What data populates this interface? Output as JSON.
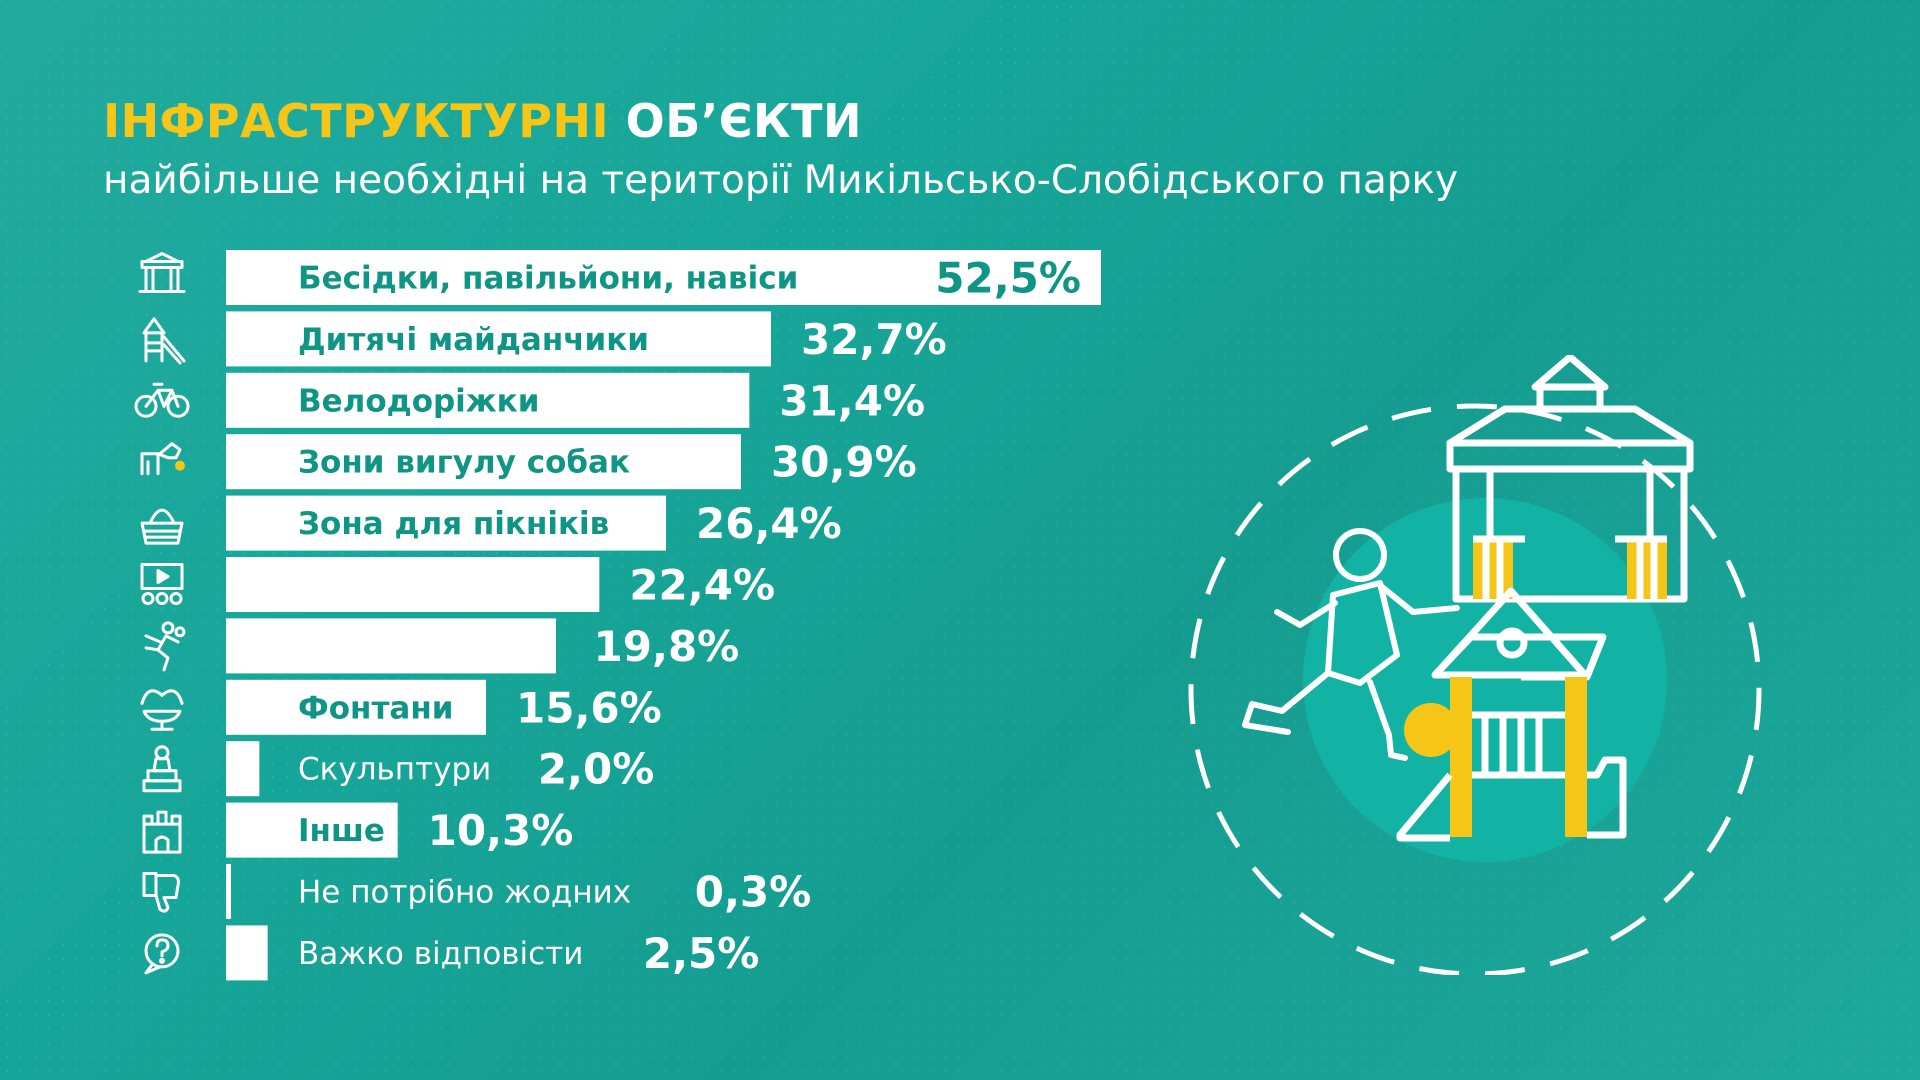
{
  "title": {
    "part1": "ІНФРАСТРУКТУРНІ",
    "part2": "ОБ’ЄКТИ",
    "subtitle": "найбільше необхідні на території Микільсько-Слобідського парку"
  },
  "colors": {
    "background": "#16a699",
    "accent": "#f5c518",
    "bar": "#ffffff",
    "bar_text": "#0e9585"
  },
  "chart_data": {
    "type": "bar",
    "orientation": "horizontal",
    "categories": [
      "Бесідки, павільйони, навіси",
      "Дитячі майданчики",
      "Велодоріжки",
      "Зони вигулу собак",
      "Зона для пікніків",
      "Літній кінотеатр",
      "Бігові доріжки",
      "Фонтани",
      "Скульптури",
      "Інше",
      "Не потрібно жодних",
      "Важко відповісти"
    ],
    "values": [
      52.5,
      32.7,
      31.4,
      30.9,
      26.4,
      22.4,
      19.8,
      15.6,
      2.0,
      10.3,
      0.3,
      2.5
    ],
    "value_labels": [
      "52,5%",
      "32,7%",
      "31,4%",
      "30,9%",
      "26,4%",
      "22,4%",
      "19,8%",
      "15,6%",
      "2,0%",
      "10,3%",
      "0,3%",
      "2,5%"
    ],
    "icons": [
      "gazebo-icon",
      "playground-icon",
      "bicycle-icon",
      "dog-icon",
      "picnic-basket-icon",
      "cinema-icon",
      "runner-icon",
      "fountain-icon",
      "sculpture-icon",
      "castle-icon",
      "thumbs-down-icon",
      "question-bubble-icon"
    ],
    "xlim": [
      0,
      52.5
    ],
    "grid": false,
    "legend": "none"
  }
}
